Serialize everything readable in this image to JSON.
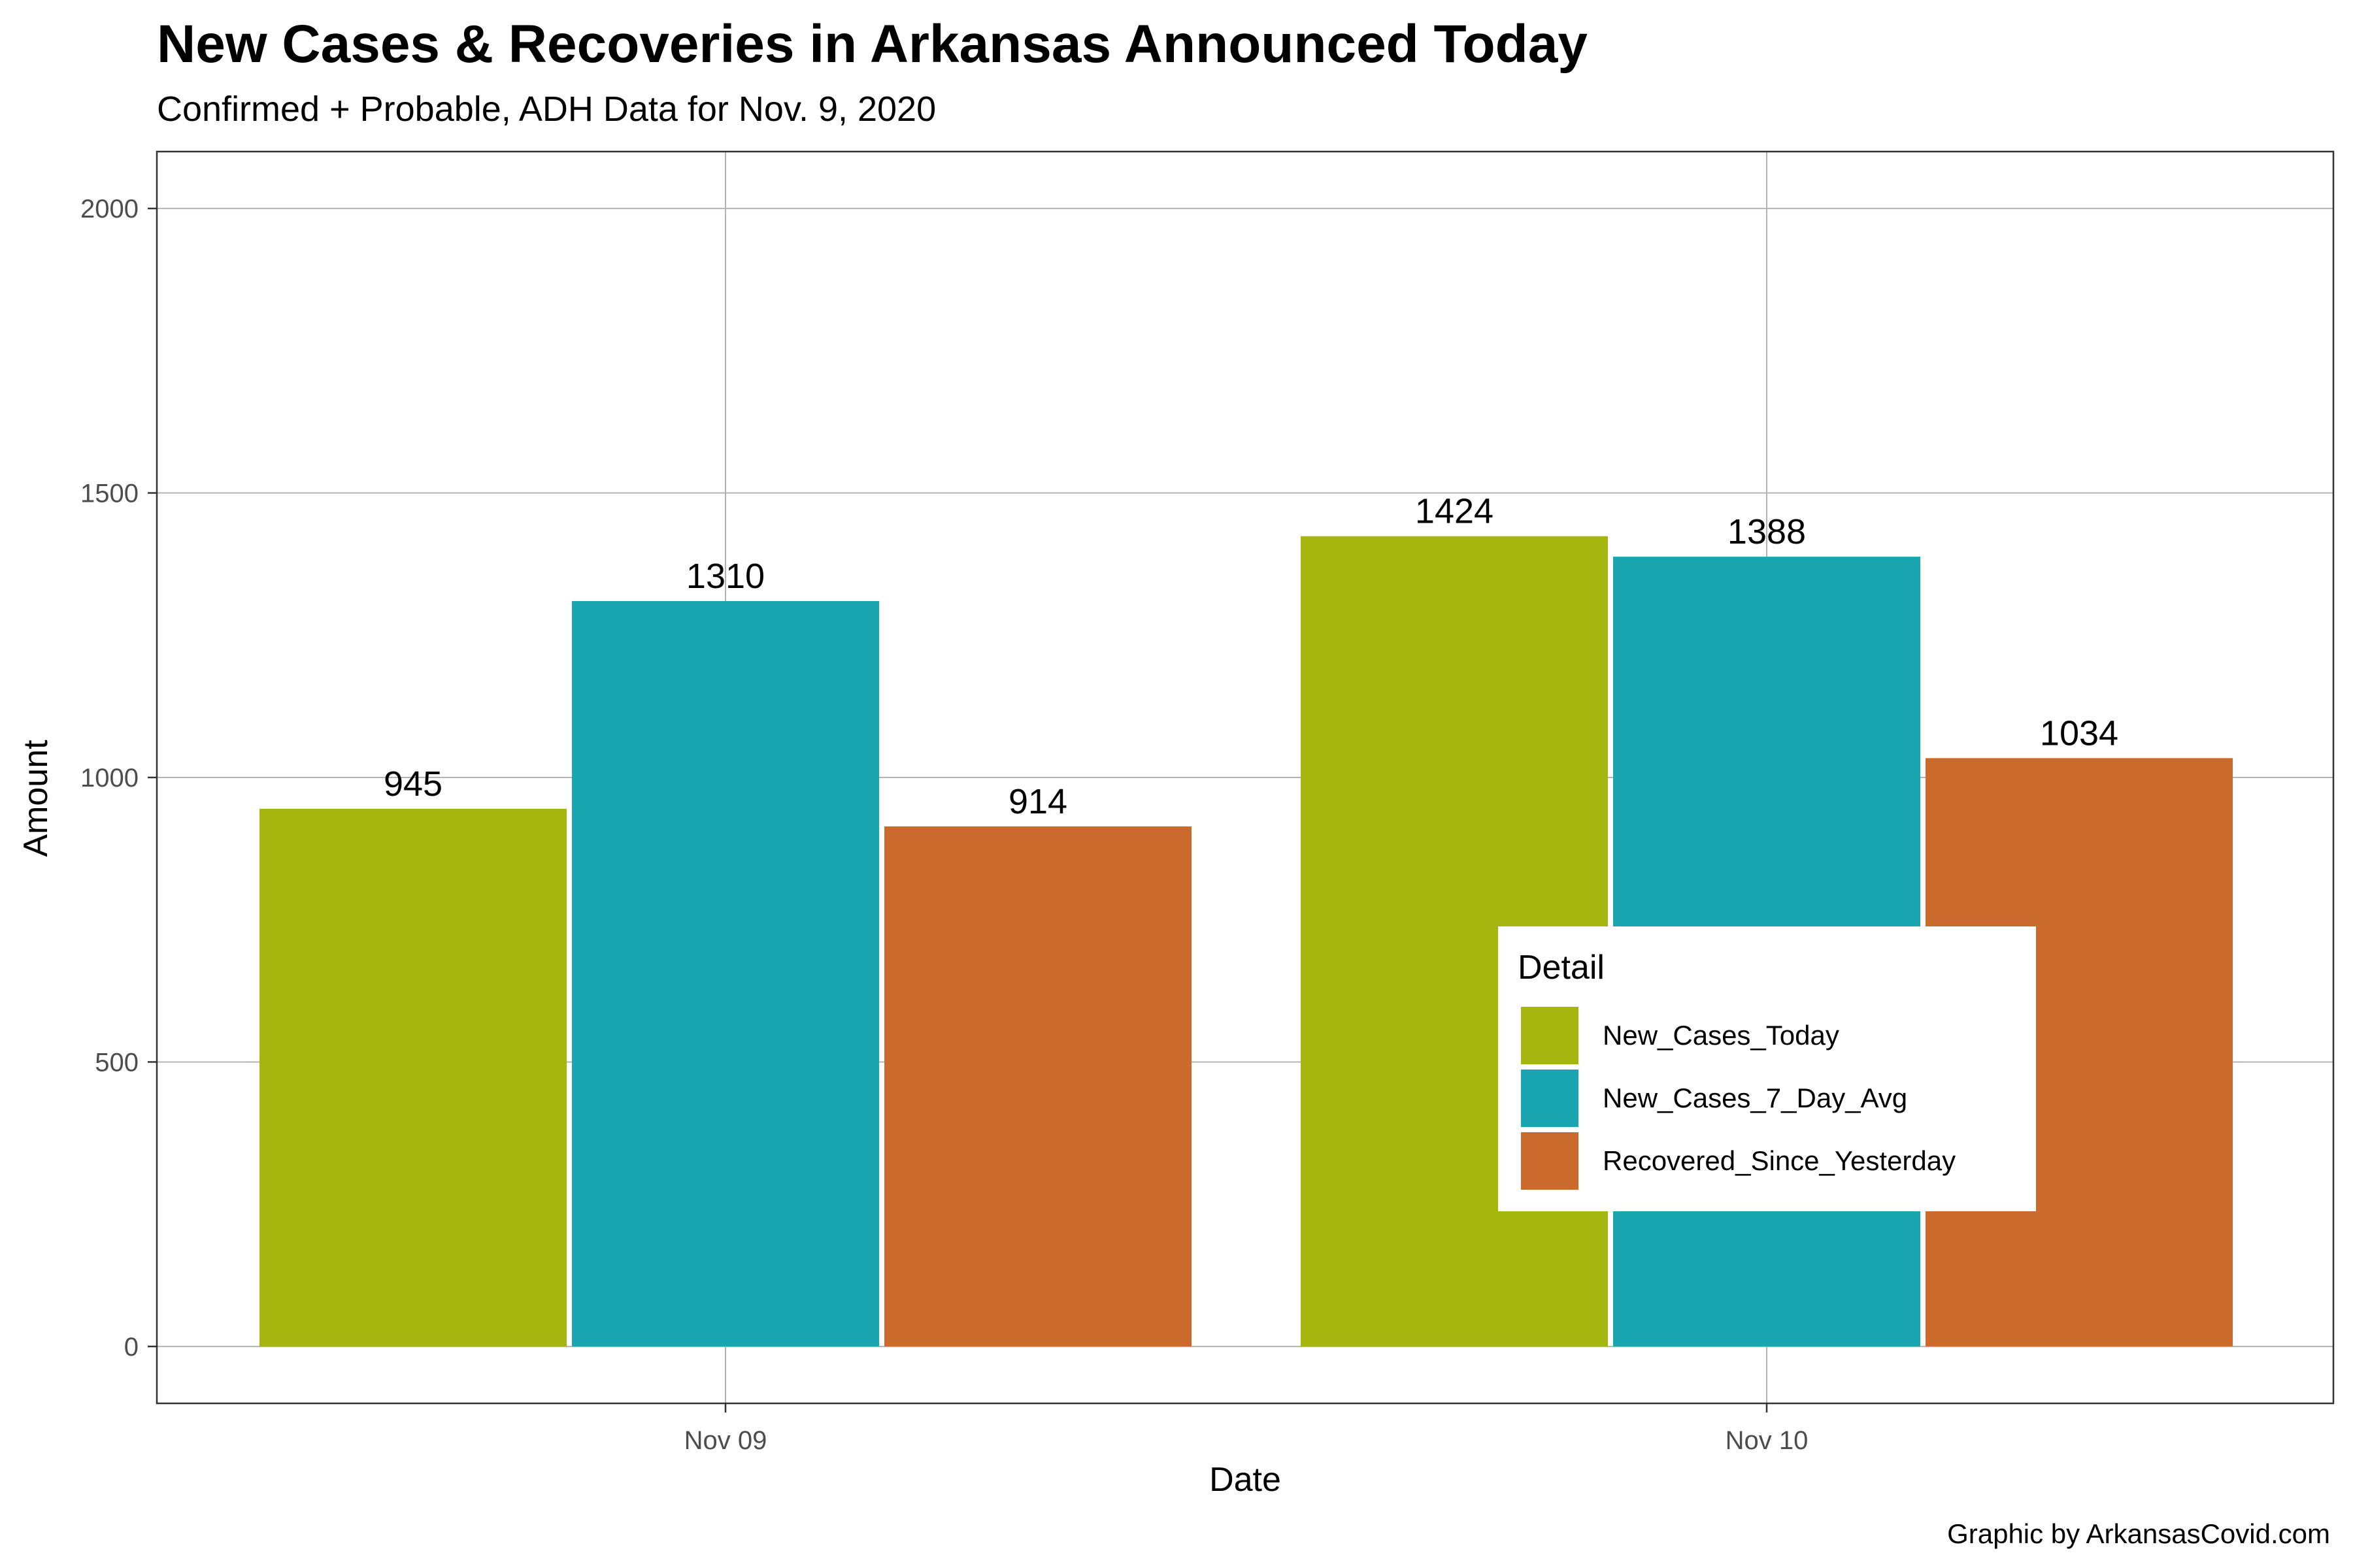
{
  "colors": {
    "New_Cases_Today": "#a5b70e",
    "New_Cases_7_Day_Avg": "#19a6b1",
    "Recovered_Since_Yesterday": "#ca6a2c",
    "grid": "#b3b3b3",
    "panel_border": "#333333"
  },
  "chart_data": {
    "type": "bar",
    "title": "New Cases & Recoveries in Arkansas Announced Today",
    "subtitle": "Confirmed + Probable,  ADH Data for Nov. 9, 2020",
    "xlabel": "Date",
    "ylabel": "Amount",
    "caption": "Graphic by ArkansasCovid.com",
    "categories": [
      "Nov 09",
      "Nov 10"
    ],
    "series": [
      {
        "name": "New_Cases_Today",
        "values": [
          945,
          1424
        ]
      },
      {
        "name": "New_Cases_7_Day_Avg",
        "values": [
          1310,
          1388
        ]
      },
      {
        "name": "Recovered_Since_Yesterday",
        "values": [
          914,
          1034
        ]
      }
    ],
    "data_labels": [
      [
        "945",
        "1424"
      ],
      [
        "1310",
        "1388"
      ],
      [
        "914",
        "1034"
      ]
    ],
    "ylim": [
      -100,
      2100
    ],
    "yticks": [
      0,
      500,
      1000,
      1500,
      2000
    ],
    "grid": true,
    "legend": {
      "title": "Detail",
      "placement": "inside-bottom-right"
    }
  }
}
